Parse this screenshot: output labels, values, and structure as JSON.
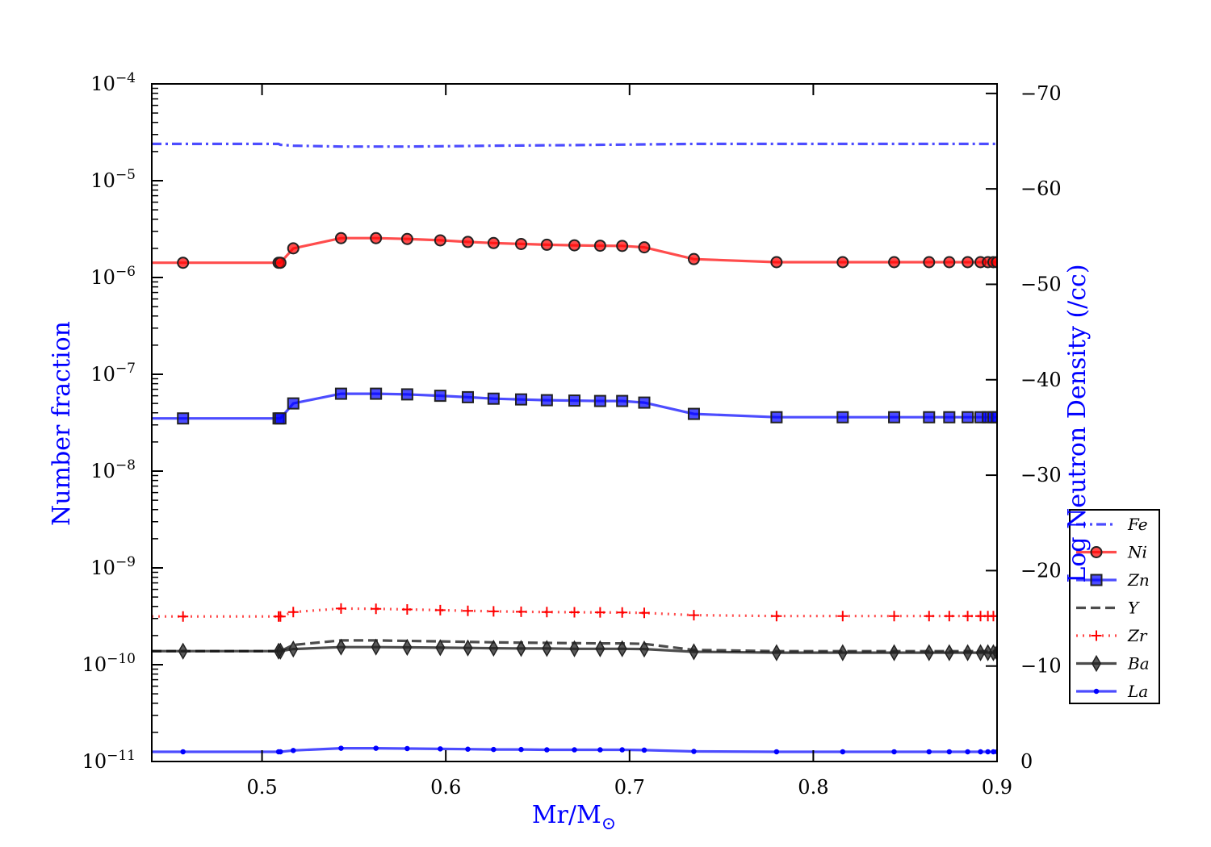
{
  "chart_data": {
    "type": "line",
    "xlabel": "Mr/M",
    "xlabel_symbol": "⊙",
    "ylabel": "Number fraction",
    "ylabel_right": "Log Neutron Density (/cc)",
    "y_scale": "log",
    "xlim": [
      0.44,
      0.9
    ],
    "ylim": [
      1e-11,
      0.0001
    ],
    "ylim_right": [
      0,
      -71
    ],
    "x_ticks": [
      {
        "value": 0.5,
        "label": "0.5"
      },
      {
        "value": 0.6,
        "label": "0.6"
      },
      {
        "value": 0.7,
        "label": "0.7"
      },
      {
        "value": 0.8,
        "label": "0.8"
      },
      {
        "value": 0.9,
        "label": "0.9"
      }
    ],
    "y_ticks": [
      {
        "exp": -11,
        "base": "10",
        "sup": "−11"
      },
      {
        "exp": -10,
        "base": "10",
        "sup": "−10"
      },
      {
        "exp": -9,
        "base": "10",
        "sup": "−9"
      },
      {
        "exp": -8,
        "base": "10",
        "sup": "−8"
      },
      {
        "exp": -7,
        "base": "10",
        "sup": "−7"
      },
      {
        "exp": -6,
        "base": "10",
        "sup": "−6"
      },
      {
        "exp": -5,
        "base": "10",
        "sup": "−5"
      },
      {
        "exp": -4,
        "base": "10",
        "sup": "−4"
      }
    ],
    "y_right_ticks": [
      {
        "value": 0,
        "label": "0"
      },
      {
        "value": -10,
        "label": "−10"
      },
      {
        "value": -20,
        "label": "−20"
      },
      {
        "value": -30,
        "label": "−30"
      },
      {
        "value": -40,
        "label": "−40"
      },
      {
        "value": -50,
        "label": "−50"
      },
      {
        "value": -60,
        "label": "−60"
      },
      {
        "value": -70,
        "label": "−70"
      }
    ],
    "legend_position": "lower-right",
    "x": [
      0.44,
      0.457,
      0.509,
      0.51,
      0.517,
      0.543,
      0.562,
      0.579,
      0.597,
      0.612,
      0.626,
      0.641,
      0.655,
      0.67,
      0.684,
      0.696,
      0.708,
      0.735,
      0.78,
      0.816,
      0.844,
      0.863,
      0.874,
      0.884,
      0.891,
      0.895,
      0.898,
      0.9
    ],
    "series": [
      {
        "name": "Fe",
        "color": "#0000ff",
        "style": "dashdot",
        "marker": "none",
        "values": [
          2.4e-05,
          2.4e-05,
          2.4e-05,
          2.35e-05,
          2.3e-05,
          2.25e-05,
          2.25e-05,
          2.25e-05,
          2.27e-05,
          2.28e-05,
          2.3e-05,
          2.31e-05,
          2.32e-05,
          2.33e-05,
          2.35e-05,
          2.36e-05,
          2.37e-05,
          2.4e-05,
          2.4e-05,
          2.4e-05,
          2.4e-05,
          2.4e-05,
          2.4e-05,
          2.4e-05,
          2.4e-05,
          2.4e-05,
          2.4e-05,
          2.4e-05
        ]
      },
      {
        "name": "Ni",
        "color": "#ff0000",
        "style": "solid",
        "marker": "circle",
        "values": [
          1.42e-06,
          1.42e-06,
          1.42e-06,
          1.42e-06,
          2e-06,
          2.55e-06,
          2.55e-06,
          2.5e-06,
          2.42e-06,
          2.33e-06,
          2.27e-06,
          2.22e-06,
          2.18e-06,
          2.15e-06,
          2.13e-06,
          2.12e-06,
          2.05e-06,
          1.55e-06,
          1.44e-06,
          1.44e-06,
          1.44e-06,
          1.44e-06,
          1.44e-06,
          1.44e-06,
          1.44e-06,
          1.44e-06,
          1.44e-06,
          1.44e-06
        ]
      },
      {
        "name": "Zn",
        "color": "#0000ff",
        "style": "solid",
        "marker": "square",
        "values": [
          3.5e-08,
          3.5e-08,
          3.5e-08,
          3.5e-08,
          5e-08,
          6.3e-08,
          6.3e-08,
          6.2e-08,
          6e-08,
          5.8e-08,
          5.6e-08,
          5.5e-08,
          5.4e-08,
          5.35e-08,
          5.3e-08,
          5.3e-08,
          5.1e-08,
          3.9e-08,
          3.6e-08,
          3.6e-08,
          3.6e-08,
          3.6e-08,
          3.6e-08,
          3.6e-08,
          3.6e-08,
          3.6e-08,
          3.6e-08,
          3.6e-08
        ]
      },
      {
        "name": "Y",
        "color": "#000000",
        "style": "dashed",
        "marker": "none",
        "values": [
          1.38e-10,
          1.38e-10,
          1.38e-10,
          1.38e-10,
          1.6e-10,
          1.78e-10,
          1.78e-10,
          1.76e-10,
          1.74e-10,
          1.72e-10,
          1.7e-10,
          1.69e-10,
          1.68e-10,
          1.67e-10,
          1.66e-10,
          1.66e-10,
          1.64e-10,
          1.42e-10,
          1.38e-10,
          1.38e-10,
          1.38e-10,
          1.38e-10,
          1.38e-10,
          1.38e-10,
          1.38e-10,
          1.38e-10,
          1.38e-10,
          1.38e-10
        ]
      },
      {
        "name": "Zr",
        "color": "#ff0000",
        "style": "dotted",
        "marker": "plus",
        "values": [
          3.15e-10,
          3.15e-10,
          3.15e-10,
          3.15e-10,
          3.5e-10,
          3.8e-10,
          3.78e-10,
          3.72e-10,
          3.66e-10,
          3.6e-10,
          3.56e-10,
          3.52e-10,
          3.5e-10,
          3.48e-10,
          3.47e-10,
          3.46e-10,
          3.43e-10,
          3.25e-10,
          3.18e-10,
          3.18e-10,
          3.18e-10,
          3.18e-10,
          3.18e-10,
          3.18e-10,
          3.18e-10,
          3.18e-10,
          3.18e-10,
          3.18e-10
        ]
      },
      {
        "name": "Ba",
        "color": "#000000",
        "style": "solid",
        "marker": "diamond",
        "values": [
          1.38e-10,
          1.38e-10,
          1.38e-10,
          1.38e-10,
          1.45e-10,
          1.52e-10,
          1.52e-10,
          1.51e-10,
          1.5e-10,
          1.49e-10,
          1.48e-10,
          1.47e-10,
          1.47e-10,
          1.46e-10,
          1.46e-10,
          1.46e-10,
          1.45e-10,
          1.36e-10,
          1.33e-10,
          1.33e-10,
          1.33e-10,
          1.33e-10,
          1.33e-10,
          1.33e-10,
          1.33e-10,
          1.33e-10,
          1.33e-10,
          1.33e-10
        ]
      },
      {
        "name": "La",
        "color": "#0000ff",
        "style": "solid",
        "marker": "dot",
        "values": [
          1.26e-11,
          1.26e-11,
          1.26e-11,
          1.26e-11,
          1.3e-11,
          1.37e-11,
          1.37e-11,
          1.36e-11,
          1.35e-11,
          1.34e-11,
          1.33e-11,
          1.33e-11,
          1.32e-11,
          1.32e-11,
          1.32e-11,
          1.32e-11,
          1.31e-11,
          1.27e-11,
          1.26e-11,
          1.26e-11,
          1.26e-11,
          1.26e-11,
          1.26e-11,
          1.26e-11,
          1.26e-11,
          1.26e-11,
          1.26e-11,
          1.26e-11
        ]
      }
    ]
  }
}
